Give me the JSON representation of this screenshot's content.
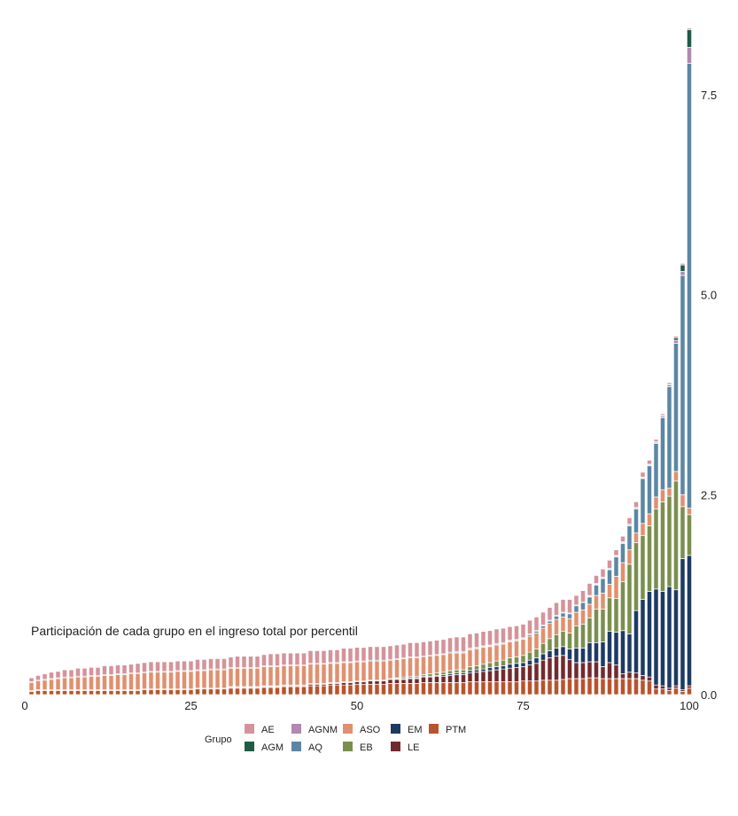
{
  "chart_data": {
    "type": "bar",
    "stacked": true,
    "title": "Participación de cada grupo en el ingreso total por percentil",
    "xlabel": "",
    "ylabel": "",
    "xlim": [
      0,
      100
    ],
    "ylim": [
      0,
      8.4
    ],
    "x_tick_labels": [
      "0",
      "25",
      "50",
      "75",
      "100"
    ],
    "y_tick_labels": [
      "0.0",
      "2.5",
      "5.0",
      "7.5"
    ],
    "y_axis_side": "right",
    "grid": false,
    "legend": {
      "title": "Grupo",
      "placement": "bottom"
    },
    "stack_order_bottom_to_top": [
      "PTM",
      "LE",
      "EM",
      "EB",
      "ASO",
      "AQ",
      "AGNM",
      "AGM",
      "AE"
    ],
    "x": [
      1,
      2,
      3,
      4,
      5,
      6,
      7,
      8,
      9,
      10,
      11,
      12,
      13,
      14,
      15,
      16,
      17,
      18,
      19,
      20,
      21,
      22,
      23,
      24,
      25,
      26,
      27,
      28,
      29,
      30,
      31,
      32,
      33,
      34,
      35,
      36,
      37,
      38,
      39,
      40,
      41,
      42,
      43,
      44,
      45,
      46,
      47,
      48,
      49,
      50,
      51,
      52,
      53,
      54,
      55,
      56,
      57,
      58,
      59,
      60,
      61,
      62,
      63,
      64,
      65,
      66,
      67,
      68,
      69,
      70,
      71,
      72,
      73,
      74,
      75,
      76,
      77,
      78,
      79,
      80,
      81,
      82,
      83,
      84,
      85,
      86,
      87,
      88,
      89,
      90,
      91,
      92,
      93,
      94,
      95,
      96,
      97,
      98,
      99,
      100
    ],
    "series": [
      {
        "name": "AE",
        "color": "#d4939a",
        "values": [
          0.05,
          0.06,
          0.07,
          0.08,
          0.08,
          0.09,
          0.09,
          0.1,
          0.1,
          0.1,
          0.1,
          0.11,
          0.11,
          0.11,
          0.11,
          0.11,
          0.12,
          0.12,
          0.12,
          0.12,
          0.12,
          0.12,
          0.12,
          0.12,
          0.12,
          0.13,
          0.13,
          0.13,
          0.13,
          0.13,
          0.13,
          0.14,
          0.14,
          0.14,
          0.14,
          0.14,
          0.15,
          0.15,
          0.15,
          0.15,
          0.15,
          0.15,
          0.16,
          0.16,
          0.16,
          0.16,
          0.16,
          0.17,
          0.17,
          0.17,
          0.17,
          0.17,
          0.17,
          0.17,
          0.17,
          0.17,
          0.17,
          0.18,
          0.18,
          0.18,
          0.18,
          0.18,
          0.18,
          0.18,
          0.18,
          0.18,
          0.18,
          0.18,
          0.18,
          0.18,
          0.18,
          0.18,
          0.17,
          0.17,
          0.17,
          0.17,
          0.17,
          0.16,
          0.16,
          0.16,
          0.16,
          0.17,
          0.12,
          0.14,
          0.15,
          0.1,
          0.1,
          0.1,
          0.07,
          0.07,
          0.08,
          0.07,
          0.06,
          0.05,
          0.03,
          0.02,
          0.02,
          0.02,
          0.02,
          0.02
        ]
      },
      {
        "name": "AGM",
        "color": "#1f5c45",
        "values": [
          0.01,
          0.01,
          0.01,
          0.01,
          0.01,
          0.01,
          0.01,
          0.01,
          0.01,
          0.01,
          0.01,
          0.01,
          0.01,
          0.01,
          0.01,
          0.01,
          0.01,
          0.01,
          0.01,
          0.01,
          0.01,
          0.01,
          0.01,
          0.01,
          0.01,
          0.01,
          0.01,
          0.01,
          0.01,
          0.01,
          0.01,
          0.01,
          0.01,
          0.01,
          0.01,
          0.01,
          0.01,
          0.01,
          0.01,
          0.01,
          0.01,
          0.01,
          0.01,
          0.01,
          0.01,
          0.01,
          0.01,
          0.01,
          0.01,
          0.01,
          0.01,
          0.01,
          0.01,
          0.01,
          0.01,
          0.01,
          0.01,
          0.01,
          0.01,
          0.01,
          0.01,
          0.01,
          0.01,
          0.01,
          0.01,
          0.01,
          0.01,
          0.01,
          0.01,
          0.01,
          0.01,
          0.01,
          0.01,
          0.01,
          0.01,
          0.01,
          0.01,
          0.01,
          0.01,
          0.01,
          0.01,
          0.01,
          0.01,
          0.01,
          0.01,
          0.01,
          0.01,
          0.01,
          0.01,
          0.01,
          0.01,
          0.01,
          0.01,
          0.01,
          0.01,
          0.01,
          0.01,
          0.03,
          0.08,
          0.22
        ]
      },
      {
        "name": "AGNM",
        "color": "#b089b0",
        "values": [
          0,
          0,
          0,
          0,
          0,
          0,
          0,
          0,
          0,
          0,
          0,
          0,
          0,
          0,
          0,
          0,
          0,
          0,
          0,
          0,
          0,
          0,
          0,
          0,
          0,
          0,
          0,
          0,
          0,
          0,
          0,
          0,
          0,
          0,
          0,
          0,
          0,
          0,
          0,
          0,
          0,
          0,
          0,
          0,
          0,
          0,
          0,
          0,
          0,
          0,
          0,
          0,
          0,
          0,
          0,
          0,
          0,
          0,
          0,
          0,
          0,
          0,
          0,
          0,
          0,
          0,
          0,
          0,
          0,
          0,
          0,
          0,
          0,
          0,
          0,
          0,
          0,
          0,
          0,
          0,
          0,
          0,
          0,
          0,
          0.01,
          0.01,
          0.01,
          0.01,
          0.01,
          0.01,
          0.01,
          0.01,
          0.01,
          0.01,
          0.01,
          0.02,
          0.02,
          0.04,
          0.05,
          0.2
        ]
      },
      {
        "name": "AQ",
        "color": "#5b87a3",
        "values": [
          0,
          0,
          0,
          0,
          0,
          0,
          0,
          0,
          0,
          0,
          0,
          0,
          0,
          0,
          0,
          0,
          0,
          0,
          0,
          0,
          0,
          0,
          0,
          0,
          0,
          0,
          0,
          0,
          0,
          0,
          0,
          0,
          0,
          0,
          0,
          0,
          0,
          0,
          0,
          0,
          0,
          0,
          0,
          0,
          0,
          0,
          0,
          0,
          0,
          0,
          0,
          0,
          0,
          0,
          0,
          0,
          0,
          0,
          0,
          0,
          0,
          0,
          0,
          0,
          0.01,
          0.01,
          0.01,
          0.01,
          0.01,
          0.01,
          0.01,
          0.01,
          0.01,
          0.01,
          0.01,
          0.02,
          0.02,
          0.03,
          0.03,
          0.04,
          0.05,
          0.06,
          0.08,
          0.09,
          0.09,
          0.13,
          0.18,
          0.18,
          0.24,
          0.24,
          0.3,
          0.3,
          0.56,
          0.6,
          0.67,
          0.9,
          1.27,
          1.6,
          2.74,
          5.56
        ]
      },
      {
        "name": "ASO",
        "color": "#e0906f",
        "values": [
          0.1,
          0.11,
          0.12,
          0.13,
          0.14,
          0.15,
          0.15,
          0.16,
          0.16,
          0.17,
          0.17,
          0.18,
          0.18,
          0.19,
          0.19,
          0.2,
          0.2,
          0.2,
          0.21,
          0.21,
          0.21,
          0.21,
          0.22,
          0.22,
          0.22,
          0.22,
          0.22,
          0.23,
          0.23,
          0.23,
          0.23,
          0.23,
          0.23,
          0.23,
          0.23,
          0.24,
          0.24,
          0.24,
          0.24,
          0.24,
          0.24,
          0.24,
          0.24,
          0.24,
          0.24,
          0.24,
          0.24,
          0.24,
          0.24,
          0.24,
          0.24,
          0.24,
          0.24,
          0.24,
          0.23,
          0.23,
          0.23,
          0.23,
          0.23,
          0.22,
          0.22,
          0.22,
          0.22,
          0.22,
          0.21,
          0.21,
          0.21,
          0.21,
          0.21,
          0.2,
          0.2,
          0.2,
          0.2,
          0.2,
          0.2,
          0.2,
          0.2,
          0.19,
          0.19,
          0.19,
          0.18,
          0.18,
          0.17,
          0.18,
          0.17,
          0.17,
          0.2,
          0.17,
          0.28,
          0.24,
          0.18,
          0.12,
          0.15,
          0.15,
          0.15,
          0.15,
          0.1,
          0.12,
          0.15,
          0.08
        ]
      },
      {
        "name": "EB",
        "color": "#7a8f4e",
        "values": [
          0.01,
          0.01,
          0.01,
          0.01,
          0.01,
          0.01,
          0.01,
          0.01,
          0.01,
          0.01,
          0.01,
          0.01,
          0.01,
          0.01,
          0.01,
          0.01,
          0.01,
          0.01,
          0.01,
          0.01,
          0.01,
          0.01,
          0.01,
          0.01,
          0.01,
          0.01,
          0.01,
          0.01,
          0.01,
          0.01,
          0.01,
          0.01,
          0.01,
          0.01,
          0.01,
          0.01,
          0.01,
          0.01,
          0.01,
          0.01,
          0.01,
          0.01,
          0.01,
          0.01,
          0.01,
          0.01,
          0.01,
          0.01,
          0.01,
          0.01,
          0.01,
          0.01,
          0.01,
          0.01,
          0.01,
          0.01,
          0.02,
          0.02,
          0.02,
          0.02,
          0.03,
          0.03,
          0.03,
          0.04,
          0.04,
          0.04,
          0.05,
          0.05,
          0.06,
          0.06,
          0.07,
          0.07,
          0.08,
          0.08,
          0.09,
          0.1,
          0.11,
          0.13,
          0.15,
          0.17,
          0.19,
          0.2,
          0.28,
          0.3,
          0.31,
          0.42,
          0.41,
          0.42,
          0.42,
          0.61,
          0.87,
          0.85,
          0.8,
          0.82,
          1.0,
          1.12,
          1.13,
          1.36,
          0.65,
          0.51
        ]
      },
      {
        "name": "EM",
        "color": "#1d3a63",
        "values": [
          0,
          0,
          0,
          0,
          0,
          0,
          0,
          0,
          0,
          0,
          0,
          0,
          0,
          0,
          0,
          0,
          0,
          0,
          0,
          0,
          0,
          0,
          0,
          0,
          0,
          0,
          0,
          0,
          0,
          0,
          0,
          0,
          0,
          0,
          0,
          0,
          0,
          0,
          0,
          0,
          0,
          0,
          0,
          0,
          0,
          0,
          0,
          0,
          0,
          0,
          0,
          0,
          0,
          0,
          0,
          0.01,
          0.01,
          0.01,
          0.01,
          0.01,
          0.01,
          0.01,
          0.02,
          0.02,
          0.02,
          0.02,
          0.03,
          0.03,
          0.03,
          0.04,
          0.04,
          0.04,
          0.05,
          0.05,
          0.05,
          0.06,
          0.07,
          0.08,
          0.09,
          0.1,
          0.11,
          0.13,
          0.18,
          0.18,
          0.24,
          0.24,
          0.31,
          0.39,
          0.41,
          0.54,
          0.48,
          0.78,
          0.95,
          1.07,
          1.2,
          1.18,
          1.27,
          1.2,
          1.64,
          1.63
        ]
      },
      {
        "name": "LE",
        "color": "#722a2e",
        "values": [
          0,
          0,
          0,
          0,
          0,
          0,
          0,
          0,
          0,
          0,
          0,
          0,
          0,
          0,
          0,
          0,
          0,
          0,
          0,
          0,
          0,
          0,
          0,
          0,
          0,
          0,
          0,
          0,
          0,
          0,
          0.01,
          0.01,
          0.01,
          0.01,
          0.01,
          0.01,
          0.01,
          0.01,
          0.01,
          0.01,
          0.01,
          0.01,
          0.02,
          0.02,
          0.02,
          0.02,
          0.02,
          0.03,
          0.03,
          0.03,
          0.03,
          0.04,
          0.04,
          0.04,
          0.05,
          0.05,
          0.05,
          0.06,
          0.06,
          0.07,
          0.07,
          0.08,
          0.08,
          0.09,
          0.1,
          0.1,
          0.11,
          0.12,
          0.13,
          0.14,
          0.15,
          0.16,
          0.17,
          0.18,
          0.18,
          0.2,
          0.22,
          0.25,
          0.28,
          0.3,
          0.3,
          0.24,
          0.2,
          0.2,
          0.2,
          0.2,
          0.15,
          0.2,
          0.17,
          0.06,
          0.08,
          0.07,
          0.06,
          0.05,
          0.05,
          0.04,
          0.03,
          0.03,
          0.02,
          0.03
        ]
      },
      {
        "name": "PTM",
        "color": "#b9532d",
        "values": [
          0.04,
          0.05,
          0.05,
          0.05,
          0.05,
          0.05,
          0.05,
          0.05,
          0.05,
          0.05,
          0.05,
          0.05,
          0.05,
          0.05,
          0.05,
          0.05,
          0.05,
          0.06,
          0.06,
          0.06,
          0.06,
          0.06,
          0.06,
          0.06,
          0.06,
          0.07,
          0.07,
          0.07,
          0.07,
          0.07,
          0.08,
          0.08,
          0.08,
          0.08,
          0.08,
          0.09,
          0.09,
          0.09,
          0.1,
          0.1,
          0.1,
          0.1,
          0.11,
          0.11,
          0.11,
          0.12,
          0.12,
          0.12,
          0.12,
          0.13,
          0.13,
          0.13,
          0.13,
          0.13,
          0.14,
          0.14,
          0.14,
          0.14,
          0.14,
          0.15,
          0.15,
          0.15,
          0.15,
          0.15,
          0.15,
          0.15,
          0.16,
          0.16,
          0.16,
          0.16,
          0.16,
          0.16,
          0.16,
          0.16,
          0.17,
          0.17,
          0.17,
          0.18,
          0.18,
          0.18,
          0.19,
          0.2,
          0.2,
          0.2,
          0.21,
          0.21,
          0.2,
          0.2,
          0.2,
          0.2,
          0.2,
          0.2,
          0.18,
          0.17,
          0.07,
          0.07,
          0.05,
          0.08,
          0.04,
          0.08
        ]
      }
    ]
  }
}
